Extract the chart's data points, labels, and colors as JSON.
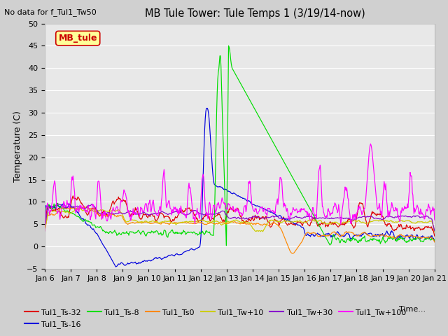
{
  "title": "MB Tule Tower: Tule Temps 1 (3/19/14-now)",
  "no_data_text": "No data for f_Tul1_Tw50",
  "ylabel": "Temperature (C)",
  "xlabel": "Time...",
  "ylim": [
    -5,
    50
  ],
  "yticks": [
    -5,
    0,
    5,
    10,
    15,
    20,
    25,
    30,
    35,
    40,
    45,
    50
  ],
  "x_tick_labels": [
    "Jan 6",
    "Jan 7",
    "Jan 8",
    "Jan 9",
    "Jan 10",
    "Jan 11",
    "Jan 12",
    "Jan 13",
    "Jan 14",
    "Jan 15",
    "Jan 16",
    "Jan 17",
    "Jan 18",
    "Jan 19",
    "Jan 20",
    "Jan 21"
  ],
  "legend_box_label": "MB_tule",
  "legend_box_facecolor": "#ffff99",
  "legend_box_edgecolor": "#cc0000",
  "legend_box_textcolor": "#cc0000",
  "fig_bg": "#d0d0d0",
  "plot_bg": "#e8e8e8",
  "grid_color": "#ffffff",
  "series": [
    {
      "label": "Tul1_Ts-32",
      "color": "#dd0000"
    },
    {
      "label": "Tul1_Ts-16",
      "color": "#0000dd"
    },
    {
      "label": "Tul1_Ts-8",
      "color": "#00dd00"
    },
    {
      "label": "Tul1_Ts0",
      "color": "#ff8800"
    },
    {
      "label": "Tul1_Tw+10",
      "color": "#cccc00"
    },
    {
      "label": "Tul1_Tw+30",
      "color": "#8800cc"
    },
    {
      "label": "Tul1_Tw+100",
      "color": "#ff00ff"
    }
  ]
}
